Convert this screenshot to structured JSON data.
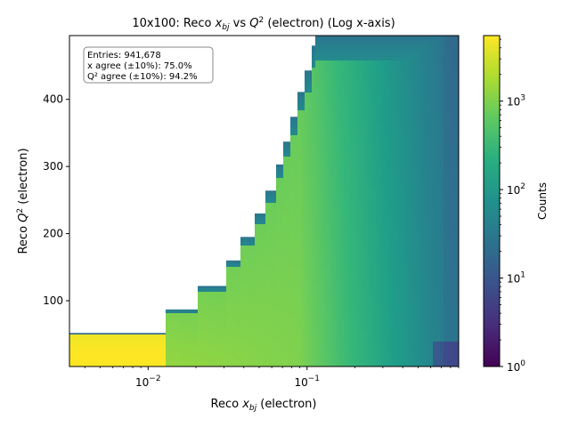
{
  "chart_data": {
    "type": "heatmap",
    "title_parts": {
      "prefix": "10x100: Reco ",
      "x_sym": "x",
      "x_sub": "bj",
      "mid": " vs ",
      "q_sym": "Q",
      "q_sup": "2",
      "suffix": " (electron) (Log x-axis)"
    },
    "xlabel_parts": {
      "prefix": "Reco ",
      "sym": "x",
      "sub": "bj",
      "suffix": " (electron)"
    },
    "ylabel_parts": {
      "prefix": "Reco ",
      "sym": "Q",
      "sup": "2",
      "suffix": " (electron)"
    },
    "x_scale": "log",
    "xlim": [
      0.0032,
      0.9
    ],
    "ylim": [
      2,
      495
    ],
    "x_ticks": [
      {
        "value": 0.01,
        "base": "10",
        "exp": "−2"
      },
      {
        "value": 0.1,
        "base": "10",
        "exp": "−1"
      }
    ],
    "y_ticks": [
      100,
      200,
      300,
      400
    ],
    "colorbar": {
      "label": "Counts",
      "scale": "log",
      "range": [
        1,
        5500
      ],
      "ticks": [
        {
          "value": 1,
          "base": "10",
          "exp": "0"
        },
        {
          "value": 10,
          "base": "10",
          "exp": "1"
        },
        {
          "value": 100,
          "base": "10",
          "exp": "2"
        },
        {
          "value": 1000,
          "base": "10",
          "exp": "3"
        }
      ]
    },
    "stats_box": {
      "lines": [
        "Entries: 941,678",
        "x agree (±10%): 75.0%",
        "Q² agree (±10%): 94.2%"
      ],
      "placement": "top-left"
    },
    "boundary": {
      "x": [
        0.0032,
        0.0126,
        0.0126,
        0.021,
        0.021,
        0.031,
        0.031,
        0.038,
        0.038,
        0.046,
        0.046,
        0.055,
        0.055,
        0.063,
        0.063,
        0.071,
        0.071,
        0.079,
        0.079,
        0.087,
        0.087,
        0.096,
        0.096,
        0.105,
        0.105,
        0.114,
        0.114,
        0.9
      ],
      "ymax": [
        52,
        52,
        87,
        87,
        122,
        122,
        160,
        160,
        195,
        195,
        230,
        230,
        264,
        264,
        303,
        303,
        337,
        337,
        374,
        374,
        411,
        411,
        443,
        443,
        480,
        480,
        495,
        495
      ]
    },
    "count_model": {
      "mode_at_low_x": 5500,
      "mode_at_mid_x": 900,
      "mode_at_high_x": 30,
      "upper_edge_counts": 60
    }
  }
}
